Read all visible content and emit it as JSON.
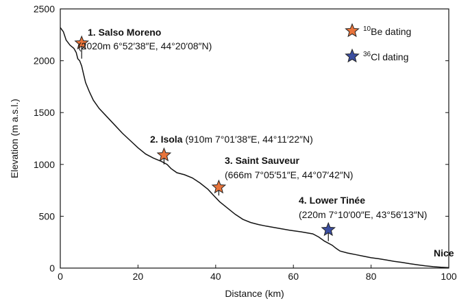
{
  "chart_data": {
    "type": "line",
    "title": "",
    "xlabel": "Distance (km)",
    "ylabel": "Elevation (m a.s.l.)",
    "xlim": [
      0,
      100
    ],
    "ylim": [
      0,
      2500
    ],
    "xticks": [
      0,
      20,
      40,
      60,
      80,
      100
    ],
    "yticks": [
      0,
      500,
      1000,
      1500,
      2000,
      2500
    ],
    "xtick_labels": [
      "0",
      "20",
      "40",
      "60",
      "80",
      "100"
    ],
    "ytick_labels": [
      "0",
      "500",
      "1000",
      "1500",
      "2000",
      "2500"
    ],
    "grid": false,
    "legend_position": "top-right",
    "colors": {
      "be10": "#e8743b",
      "cl36": "#3b4ea0",
      "line": "#111111"
    },
    "legend": [
      {
        "isotope": "10",
        "label": "Be dating",
        "color_key": "be10"
      },
      {
        "isotope": "36",
        "label": "Cl dating",
        "color_key": "cl36"
      }
    ],
    "profile": {
      "x": [
        0,
        0.8,
        1.5,
        2.5,
        3.5,
        4.1,
        4.5,
        5.0,
        5.5,
        6.0,
        6.5,
        7.5,
        8.5,
        10,
        12,
        14,
        16,
        18,
        20,
        22,
        24,
        26,
        27.5,
        28.5,
        30,
        32,
        34,
        36,
        38,
        39.5,
        41,
        43,
        45,
        47,
        49,
        51,
        53,
        56,
        59,
        62,
        65,
        66.5,
        68,
        70,
        71,
        72,
        74,
        76,
        78,
        80,
        82,
        84,
        86,
        88,
        90,
        92,
        94,
        96,
        98,
        100
      ],
      "y": [
        2320,
        2280,
        2200,
        2150,
        2120,
        2080,
        2020,
        2000,
        1950,
        1870,
        1790,
        1700,
        1620,
        1540,
        1460,
        1380,
        1300,
        1230,
        1160,
        1100,
        1060,
        1030,
        1000,
        960,
        920,
        900,
        870,
        820,
        760,
        700,
        640,
        580,
        520,
        470,
        440,
        420,
        405,
        385,
        365,
        350,
        330,
        300,
        260,
        220,
        190,
        165,
        145,
        130,
        115,
        100,
        90,
        78,
        65,
        55,
        42,
        32,
        22,
        14,
        8,
        4
      ]
    },
    "sites": [
      {
        "number_name": "1. Salso Moreno",
        "detail": "(2020m 6°52′38″E, 44°20′08″N)",
        "x": 5.5,
        "y": 2020,
        "marker_y": 2170,
        "method": "be10"
      },
      {
        "number_name": "2. Isola",
        "detail": "(910m 7°01′38″E, 44°11′22″N)",
        "x": 26.7,
        "y": 1000,
        "marker_y": 1090,
        "method": "be10"
      },
      {
        "number_name": "3. Saint Sauveur",
        "detail": "(666m 7°05′51″E, 44°07′42″N)",
        "x": 40.8,
        "y": 700,
        "marker_y": 780,
        "method": "be10"
      },
      {
        "number_name": "4. Lower Tinée",
        "detail": "(220m 7°10′00″E, 43°56′13″N)",
        "x": 69.0,
        "y": 260,
        "marker_y": 370,
        "method": "cl36"
      }
    ],
    "end_label": "Nice"
  }
}
